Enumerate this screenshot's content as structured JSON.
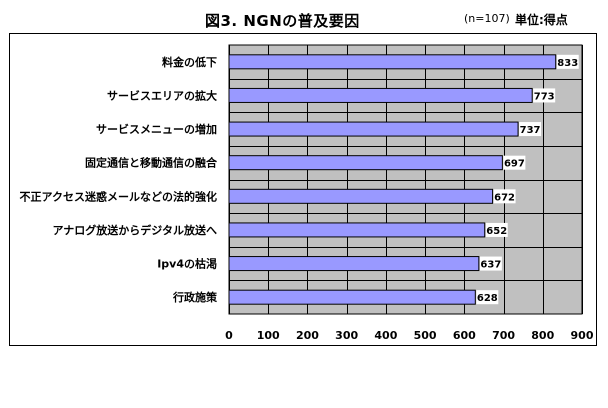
{
  "header": {
    "title": "図3. NGNの普及要因",
    "sample_note": "(n=107)",
    "unit_note": "単位:得点"
  },
  "chart_data": {
    "type": "bar",
    "orientation": "horizontal",
    "categories": [
      "料金の低下",
      "サービスエリアの拡大",
      "サービスメニューの増加",
      "固定通信と移動通信の融合",
      "不正アクセス迷惑メールなどの法的強化",
      "アナログ放送からデジタル放送へ",
      "Ipv4の枯渇",
      "行政施策"
    ],
    "values": [
      833,
      773,
      737,
      697,
      672,
      652,
      637,
      628
    ],
    "value_labels": [
      "833",
      "773",
      "737",
      "697",
      "672",
      "652",
      "637",
      "628"
    ],
    "xlim": [
      0,
      900
    ],
    "xticks": [
      0,
      100,
      200,
      300,
      400,
      500,
      600,
      700,
      800,
      900
    ],
    "xtick_labels": [
      "0",
      "100",
      "200",
      "300",
      "400",
      "500",
      "600",
      "700",
      "800",
      "900"
    ],
    "grid": true,
    "plot_background": "#c0c0c0",
    "bar_color": "#9999ff",
    "bar_border": "#000000"
  }
}
